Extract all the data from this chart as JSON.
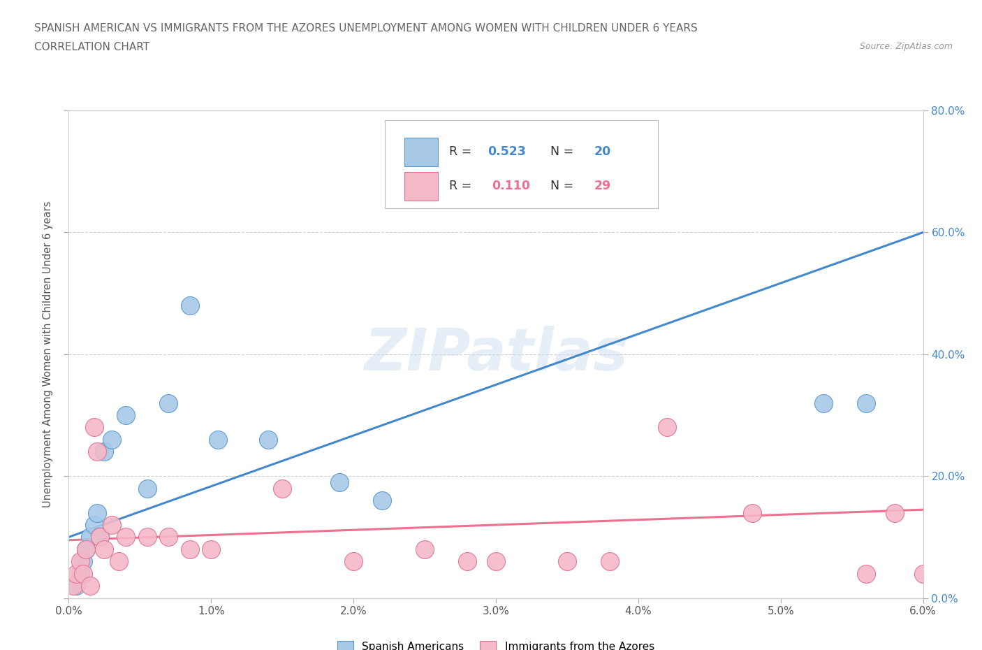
{
  "title_line1": "SPANISH AMERICAN VS IMMIGRANTS FROM THE AZORES UNEMPLOYMENT AMONG WOMEN WITH CHILDREN UNDER 6 YEARS",
  "title_line2": "CORRELATION CHART",
  "source": "Source: ZipAtlas.com",
  "ylabel_label": "Unemployment Among Women with Children Under 6 years",
  "xlim": [
    0.0,
    6.0
  ],
  "ylim": [
    0.0,
    80.0
  ],
  "xticks": [
    0,
    1,
    2,
    3,
    4,
    5,
    6
  ],
  "yticks": [
    0,
    20,
    40,
    60,
    80
  ],
  "xtick_labels": [
    "0.0%",
    "1.0%",
    "2.0%",
    "3.0%",
    "4.0%",
    "5.0%",
    "6.0%"
  ],
  "ytick_labels": [
    "0.0%",
    "20.0%",
    "40.0%",
    "60.0%",
    "80.0%"
  ],
  "blue_color": "#A8C8E8",
  "blue_edge": "#5599CC",
  "pink_color": "#F4B8C8",
  "pink_edge": "#E07090",
  "trendline_blue": "#4488CC",
  "trendline_pink": "#EE7090",
  "grid_color": "#BBBBBB",
  "background_color": "#FFFFFF",
  "watermark": "ZIPatlas",
  "legend_r1_r": "0.523",
  "legend_r1_n": "20",
  "legend_r2_r": "0.110",
  "legend_r2_n": "29",
  "blue_x": [
    0.05,
    0.08,
    0.1,
    0.12,
    0.15,
    0.18,
    0.2,
    0.22,
    0.25,
    0.3,
    0.4,
    0.55,
    0.7,
    0.85,
    1.05,
    1.4,
    1.9,
    2.2,
    5.3,
    5.6
  ],
  "blue_y": [
    2.0,
    4.0,
    6.0,
    8.0,
    10.0,
    12.0,
    14.0,
    10.0,
    24.0,
    26.0,
    30.0,
    18.0,
    32.0,
    48.0,
    26.0,
    26.0,
    19.0,
    16.0,
    32.0,
    32.0
  ],
  "pink_x": [
    0.03,
    0.05,
    0.08,
    0.1,
    0.12,
    0.15,
    0.18,
    0.2,
    0.22,
    0.25,
    0.3,
    0.35,
    0.4,
    0.55,
    0.7,
    0.85,
    1.0,
    1.5,
    2.0,
    2.5,
    2.8,
    3.0,
    3.5,
    3.8,
    4.2,
    4.8,
    5.6,
    5.8,
    6.0
  ],
  "pink_y": [
    2.0,
    4.0,
    6.0,
    4.0,
    8.0,
    2.0,
    28.0,
    24.0,
    10.0,
    8.0,
    12.0,
    6.0,
    10.0,
    10.0,
    10.0,
    8.0,
    8.0,
    18.0,
    6.0,
    8.0,
    6.0,
    6.0,
    6.0,
    6.0,
    28.0,
    14.0,
    4.0,
    14.0,
    4.0
  ],
  "blue_trendline_y_at_0": 10.0,
  "blue_trendline_y_at_6": 60.0,
  "pink_trendline_y_at_0": 9.5,
  "pink_trendline_y_at_6": 14.5
}
